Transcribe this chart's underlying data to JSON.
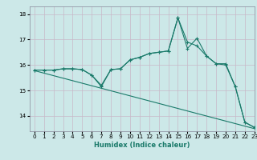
{
  "xlabel": "Humidex (Indice chaleur)",
  "bg_color": "#cce8e8",
  "line_color": "#1a7a6a",
  "xlim": [
    -0.5,
    23
  ],
  "ylim": [
    13.4,
    18.3
  ],
  "yticks": [
    14,
    15,
    16,
    17,
    18
  ],
  "xticks": [
    0,
    1,
    2,
    3,
    4,
    5,
    6,
    7,
    8,
    9,
    10,
    11,
    12,
    13,
    14,
    15,
    16,
    17,
    18,
    19,
    20,
    21,
    22,
    23
  ],
  "line1_x": [
    0,
    1,
    2,
    3,
    4,
    5,
    6,
    7,
    8,
    9,
    10,
    11,
    12,
    13,
    14,
    15,
    16,
    17,
    18,
    19,
    20,
    21,
    22,
    23
  ],
  "line1_y": [
    15.8,
    15.8,
    15.8,
    15.85,
    15.85,
    15.82,
    15.6,
    15.15,
    15.82,
    15.85,
    16.2,
    16.3,
    16.45,
    16.5,
    16.55,
    17.85,
    16.65,
    17.05,
    16.35,
    16.05,
    16.05,
    15.15,
    13.75,
    13.55
  ],
  "line2_x": [
    0,
    1,
    2,
    3,
    4,
    5,
    6,
    7,
    8,
    9,
    10,
    11,
    12,
    13,
    14,
    15,
    16,
    17,
    18,
    19,
    20,
    21,
    22,
    23
  ],
  "line2_y": [
    15.8,
    15.8,
    15.8,
    15.85,
    15.85,
    15.82,
    15.6,
    15.2,
    15.82,
    15.85,
    16.2,
    16.3,
    16.45,
    16.5,
    16.55,
    17.85,
    16.9,
    16.75,
    16.35,
    16.05,
    16.0,
    15.15,
    13.75,
    13.55
  ],
  "line3_x": [
    0,
    23
  ],
  "line3_y": [
    15.78,
    13.5
  ]
}
